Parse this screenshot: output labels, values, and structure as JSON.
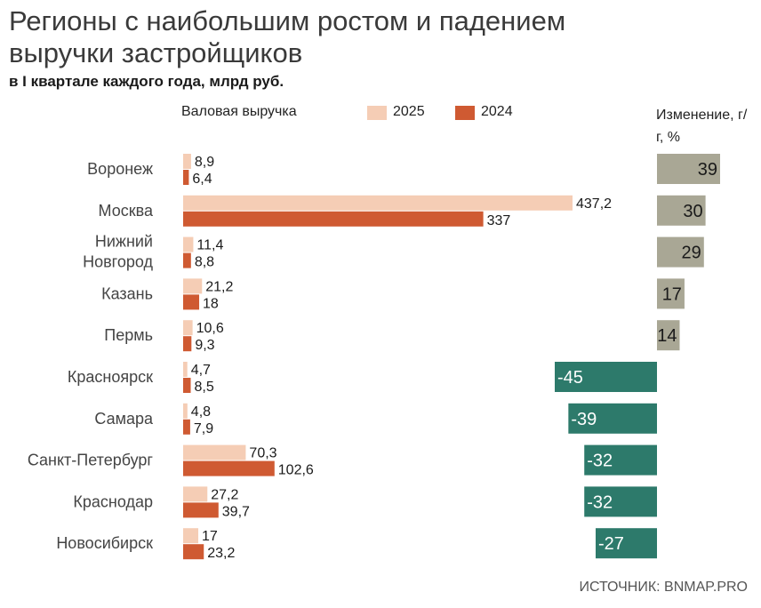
{
  "title": "Регионы с наибольшим ростом и падением выручки застройщиков",
  "subtitle": "в I квартале каждого года, млрд руб.",
  "gross_header": "Валовая выручка",
  "change_header": "Изменение, г/г, %",
  "source": "ИСТОЧНИК: BNMAP.PRO",
  "colors": {
    "y2025": "#f5cdb5",
    "y2024": "#cf5a32",
    "positive": "#a9a795",
    "negative": "#2d7a6b"
  },
  "legend": [
    {
      "label": "2025",
      "color": "#f5cdb5"
    },
    {
      "label": "2024",
      "color": "#cf5a32"
    }
  ],
  "chart_data": [
    {
      "type": "bar",
      "orientation": "horizontal",
      "title": "Валовая выручка",
      "categories": [
        [
          "Воронеж"
        ],
        [
          "Москва"
        ],
        [
          "Нижний",
          "Новгород"
        ],
        [
          "Казань"
        ],
        [
          "Пермь"
        ],
        [
          "Красноярск"
        ],
        [
          "Самара"
        ],
        [
          "Санкт-Петербург"
        ],
        [
          "Краснодар"
        ],
        [
          "Новосибирск"
        ]
      ],
      "series": [
        {
          "name": "2025",
          "values": [
            8.9,
            437.2,
            11.4,
            21.2,
            10.6,
            4.7,
            4.8,
            70.3,
            27.2,
            17
          ],
          "labels": [
            "8,9",
            "437,2",
            "11,4",
            "21,2",
            "10,6",
            "4,7",
            "4,8",
            "70,3",
            "27,2",
            "17"
          ]
        },
        {
          "name": "2024",
          "values": [
            6.4,
            337,
            8.8,
            18,
            9.3,
            8.5,
            7.9,
            102.6,
            39.7,
            23.2
          ],
          "labels": [
            "6,4",
            "337",
            "8,8",
            "18",
            "9,3",
            "8,5",
            "7,9",
            "102,6",
            "39,7",
            "23,2"
          ]
        }
      ],
      "xlim": [
        0,
        437.2
      ]
    },
    {
      "type": "bar",
      "orientation": "horizontal",
      "title": "Изменение, г/г, %",
      "categories": [
        [
          "Воронеж"
        ],
        [
          "Москва"
        ],
        [
          "Нижний",
          "Новгород"
        ],
        [
          "Казань"
        ],
        [
          "Пермь"
        ],
        [
          "Красноярск"
        ],
        [
          "Самара"
        ],
        [
          "Санкт-Петербург"
        ],
        [
          "Краснодар"
        ],
        [
          "Новосибирск"
        ]
      ],
      "values": [
        39,
        30,
        29,
        17,
        14,
        -45,
        -39,
        -32,
        -32,
        -27
      ],
      "labels": [
        "39",
        "30",
        "29",
        "17",
        "14",
        "-45",
        "-39",
        "-32",
        "-32",
        "-27"
      ],
      "xlim": [
        -45,
        39
      ]
    }
  ]
}
